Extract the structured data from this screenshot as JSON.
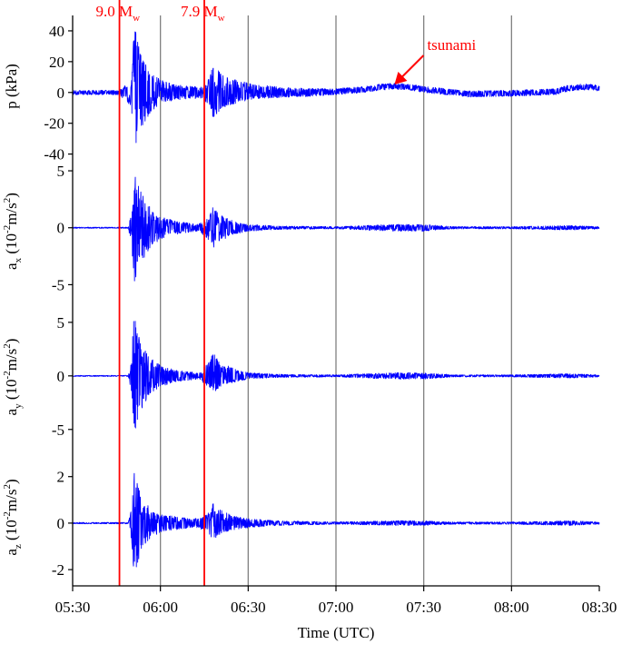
{
  "chart_data": {
    "type": "line",
    "xlabel": "Time (UTC)",
    "x_ticks": [
      "05:30",
      "06:00",
      "06:30",
      "07:00",
      "07:30",
      "08:00",
      "08:30"
    ],
    "x_range": [
      "05:30",
      "08:30"
    ],
    "colors": {
      "trace": "#0000ff",
      "event": "#ff0000",
      "grid": "#808080"
    },
    "events": [
      {
        "time": "05:46",
        "label_main": "9.0 M",
        "label_sub": "w"
      },
      {
        "time": "06:15",
        "label_main": "7.9 M",
        "label_sub": "w"
      }
    ],
    "annotation": {
      "text": "tsunami",
      "time": "07:20",
      "value": 4
    },
    "panels": [
      {
        "id": "p",
        "ylabel": "p (kPa)",
        "ylim": [
          -42,
          50
        ],
        "yticks": [
          40,
          20,
          0,
          -20,
          -40
        ],
        "ytick_labels": [
          "40",
          "20",
          "0",
          "-20",
          "-40"
        ],
        "envelope": {
          "time": [
            "05:30",
            "05:46",
            "05:50",
            "05:51",
            "05:52",
            "05:54",
            "05:57",
            "06:01",
            "06:05",
            "06:10",
            "06:14",
            "06:17",
            "06:18",
            "06:21",
            "06:26",
            "06:33",
            "06:45",
            "07:00",
            "07:15",
            "07:30",
            "07:45",
            "08:00",
            "08:15",
            "08:30"
          ],
          "upper": [
            1.5,
            1.5,
            8,
            45,
            35,
            22,
            12,
            8,
            5,
            4,
            4,
            10,
            21,
            12,
            8,
            5,
            3,
            2,
            2,
            2,
            2,
            2,
            2,
            2
          ],
          "lower": [
            -1.5,
            -1.5,
            -10,
            -41,
            -30,
            -22,
            -12,
            -7,
            -5,
            -4,
            -4,
            -8,
            -17,
            -10,
            -7,
            -4,
            -3,
            -2,
            -2,
            -2,
            -2,
            -2,
            -2,
            -2
          ]
        },
        "baseline": {
          "time": [
            "05:30",
            "06:30",
            "06:50",
            "07:00",
            "07:10",
            "07:15",
            "07:20",
            "07:25",
            "07:30",
            "07:40",
            "07:45",
            "08:00",
            "08:15",
            "08:20",
            "08:25",
            "08:30"
          ],
          "value": [
            0,
            0,
            0,
            0.5,
            2,
            3.5,
            4,
            3.5,
            2,
            0,
            -1,
            -0.5,
            0.5,
            3,
            3.5,
            3
          ]
        }
      },
      {
        "id": "ax",
        "ylabel_main": "a",
        "ylabel_sub": "x",
        "ylabel_rest": " (10",
        "ylabel_exp1": "-2",
        "ylabel_unit": "m/s",
        "ylabel_exp2": "2",
        "ylabel_close": ")",
        "ylim": [
          -6.8,
          6.2
        ],
        "yticks": [
          5,
          0,
          -5
        ],
        "ytick_labels": [
          "5",
          "0",
          "-5"
        ],
        "envelope": {
          "time": [
            "05:30",
            "05:49",
            "05:50",
            "05:51",
            "05:52",
            "05:54",
            "05:57",
            "06:00",
            "06:05",
            "06:10",
            "06:13",
            "06:17",
            "06:18",
            "06:20",
            "06:25",
            "06:30",
            "06:40",
            "07:00",
            "07:20",
            "07:30",
            "07:40",
            "08:00",
            "08:20",
            "08:30"
          ],
          "upper": [
            0.05,
            0.05,
            1.2,
            5.0,
            4.0,
            2.8,
            1.6,
            1.0,
            0.6,
            0.4,
            0.3,
            1.2,
            1.9,
            1.2,
            0.6,
            0.3,
            0.15,
            0.1,
            0.3,
            0.3,
            0.1,
            0.1,
            0.2,
            0.1
          ],
          "lower": [
            -0.05,
            -0.05,
            -1.4,
            -5.3,
            -4.2,
            -2.8,
            -1.6,
            -1.0,
            -0.6,
            -0.4,
            -0.3,
            -1.2,
            -1.9,
            -1.2,
            -0.6,
            -0.3,
            -0.15,
            -0.1,
            -0.3,
            -0.3,
            -0.1,
            -0.1,
            -0.2,
            -0.1
          ]
        }
      },
      {
        "id": "ay",
        "ylabel_main": "a",
        "ylabel_sub": "y",
        "ylabel_rest": " (10",
        "ylabel_exp1": "-2",
        "ylabel_unit": "m/s",
        "ylabel_exp2": "2",
        "ylabel_close": ")",
        "ylim": [
          -6.8,
          6.6
        ],
        "yticks": [
          5,
          0,
          -5
        ],
        "ytick_labels": [
          "5",
          "0",
          "-5"
        ],
        "envelope": {
          "time": [
            "05:30",
            "05:49",
            "05:50",
            "05:51",
            "05:52",
            "05:54",
            "05:57",
            "06:00",
            "06:05",
            "06:10",
            "06:13",
            "06:17",
            "06:18",
            "06:20",
            "06:25",
            "06:30",
            "06:40",
            "07:00",
            "07:20",
            "07:30",
            "07:40",
            "08:00",
            "08:20",
            "08:30"
          ],
          "upper": [
            0.05,
            0.05,
            1.2,
            6.0,
            4.5,
            2.8,
            1.6,
            1.0,
            0.6,
            0.4,
            0.3,
            1.5,
            2.2,
            1.3,
            0.7,
            0.3,
            0.15,
            0.1,
            0.3,
            0.3,
            0.1,
            0.1,
            0.2,
            0.1
          ],
          "lower": [
            -0.05,
            -0.05,
            -1.4,
            -5.8,
            -4.5,
            -2.8,
            -1.6,
            -1.0,
            -0.6,
            -0.4,
            -0.3,
            -1.2,
            -1.8,
            -1.1,
            -0.6,
            -0.3,
            -0.15,
            -0.1,
            -0.3,
            -0.3,
            -0.1,
            -0.1,
            -0.2,
            -0.1
          ]
        }
      },
      {
        "id": "az",
        "ylabel_main": "a",
        "ylabel_sub": "z",
        "ylabel_rest": " (10",
        "ylabel_exp1": "-2",
        "ylabel_unit": "m/s",
        "ylabel_exp2": "2",
        "ylabel_close": ")",
        "ylim": [
          -2.7,
          3.2
        ],
        "yticks": [
          2,
          0,
          -2
        ],
        "ytick_labels": [
          "2",
          "0",
          "-2"
        ],
        "envelope": {
          "time": [
            "05:30",
            "05:49",
            "05:50",
            "05:51",
            "05:52",
            "05:54",
            "05:57",
            "06:00",
            "06:05",
            "06:10",
            "06:13",
            "06:17",
            "06:18",
            "06:20",
            "06:25",
            "06:30",
            "06:40",
            "07:00",
            "07:20",
            "07:30",
            "07:40",
            "08:00",
            "08:20",
            "08:30"
          ],
          "upper": [
            0.03,
            0.03,
            0.6,
            2.6,
            1.8,
            1.0,
            0.6,
            0.4,
            0.3,
            0.2,
            0.2,
            0.5,
            0.9,
            0.6,
            0.3,
            0.2,
            0.1,
            0.05,
            0.1,
            0.1,
            0.05,
            0.05,
            0.1,
            0.05
          ],
          "lower": [
            -0.03,
            -0.03,
            -0.7,
            -2.4,
            -1.8,
            -1.0,
            -0.6,
            -0.4,
            -0.3,
            -0.2,
            -0.2,
            -0.5,
            -0.8,
            -0.5,
            -0.3,
            -0.2,
            -0.1,
            -0.05,
            -0.1,
            -0.1,
            -0.05,
            -0.05,
            -0.1,
            -0.05
          ]
        }
      }
    ]
  }
}
